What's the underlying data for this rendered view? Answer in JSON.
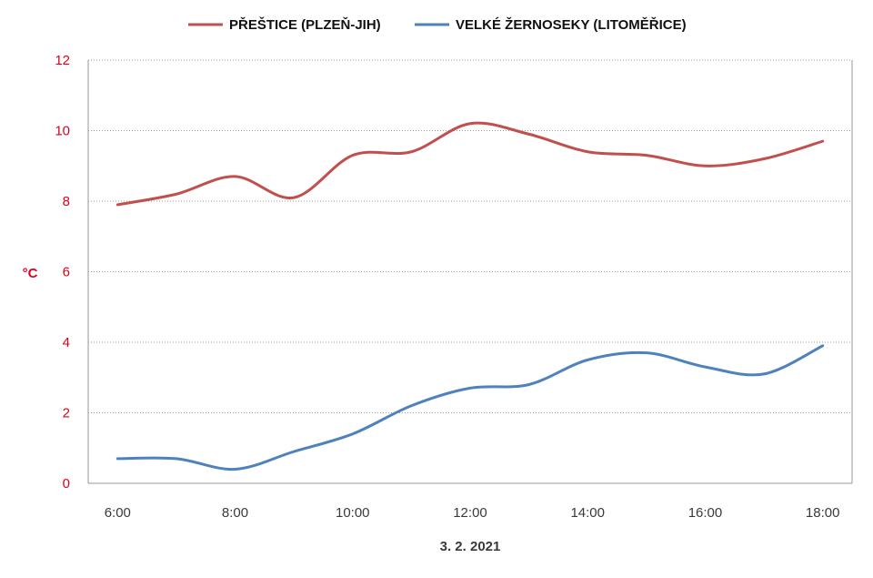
{
  "chart_data": {
    "type": "line",
    "x": [
      "6:00",
      "7:00",
      "8:00",
      "9:00",
      "10:00",
      "11:00",
      "12:00",
      "13:00",
      "14:00",
      "15:00",
      "16:00",
      "17:00",
      "18:00"
    ],
    "xticks": [
      "6:00",
      "8:00",
      "10:00",
      "12:00",
      "14:00",
      "16:00",
      "18:00"
    ],
    "xlabel": "3. 2. 2021",
    "ylabel": "°C",
    "ylim": [
      0,
      12
    ],
    "yticks": [
      "0",
      "2",
      "4",
      "6",
      "8",
      "10",
      "12"
    ],
    "grid": true,
    "legend_position": "top-center",
    "series": [
      {
        "name": "PŘEŠTICE (PLZEŇ-JIH)",
        "color": "#c0504d",
        "values": [
          7.9,
          8.2,
          8.7,
          8.1,
          9.3,
          9.4,
          10.2,
          9.9,
          9.4,
          9.3,
          9.0,
          9.2,
          9.7
        ]
      },
      {
        "name": "VELKÉ ŽERNOSEKY (LITOMĚŘICE)",
        "color": "#4f81bd",
        "values": [
          0.7,
          0.7,
          0.4,
          0.9,
          1.4,
          2.2,
          2.7,
          2.8,
          3.5,
          3.7,
          3.3,
          3.1,
          3.9
        ]
      }
    ]
  }
}
